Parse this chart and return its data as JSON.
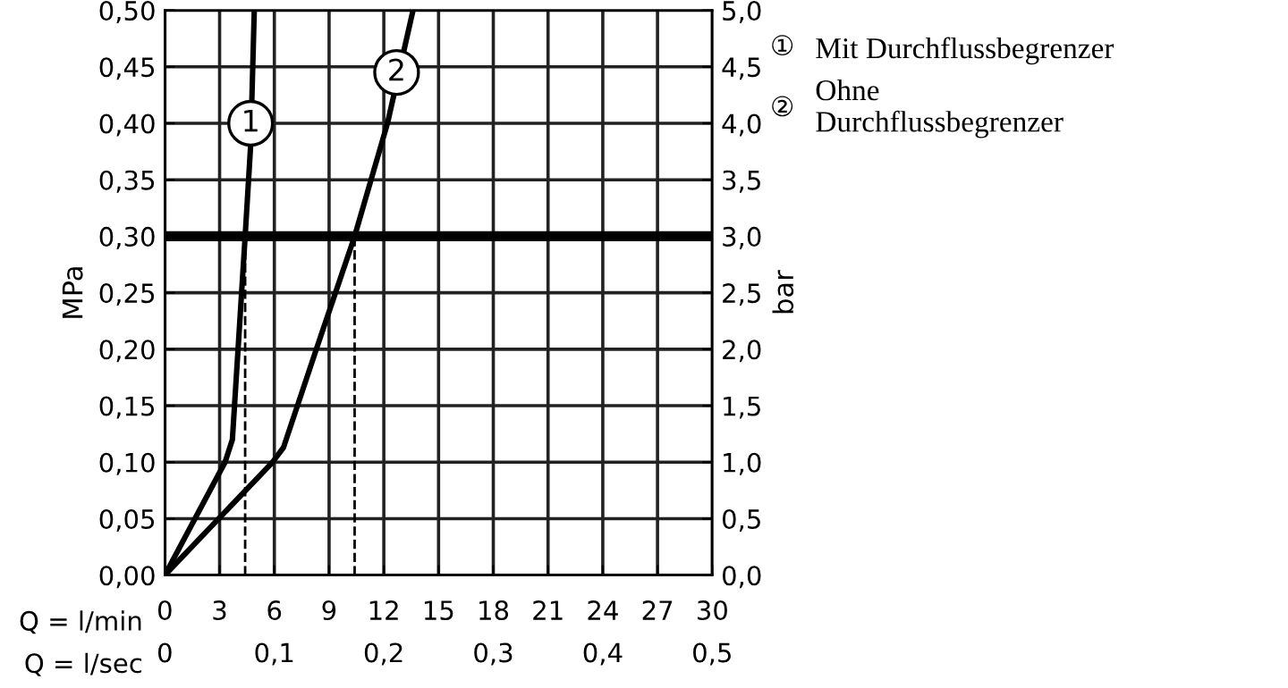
{
  "chart_data": {
    "type": "line",
    "xlabel": "Q = l/min",
    "x2label": "Q = l/sec",
    "ylabel": "MPa",
    "y2label": "bar",
    "xlim": [
      0,
      30
    ],
    "xticks": [
      0,
      3,
      6,
      9,
      12,
      15,
      18,
      21,
      24,
      27,
      30
    ],
    "x2lim": [
      0,
      0.5
    ],
    "x2ticks": [
      0,
      {
        "value": 0.1,
        "label": "0,1"
      },
      {
        "value": 0.2,
        "label": "0,2"
      },
      {
        "value": 0.3,
        "label": "0,3"
      },
      {
        "value": 0.4,
        "label": "0,4"
      },
      {
        "value": 0.5,
        "label": "0,5"
      }
    ],
    "ylim": [
      0,
      0.5
    ],
    "yticks": [
      {
        "value": 0,
        "label": "0,00"
      },
      {
        "value": 0.05,
        "label": "0,05"
      },
      {
        "value": 0.1,
        "label": "0,10"
      },
      {
        "value": 0.15,
        "label": "0,15"
      },
      {
        "value": 0.2,
        "label": "0,20"
      },
      {
        "value": 0.25,
        "label": "0,25"
      },
      {
        "value": 0.3,
        "label": "0,30"
      },
      {
        "value": 0.35,
        "label": "0,35"
      },
      {
        "value": 0.4,
        "label": "0,40"
      },
      {
        "value": 0.45,
        "label": "0,45"
      },
      {
        "value": 0.5,
        "label": "0,50"
      }
    ],
    "y2lim": [
      0,
      5
    ],
    "y2ticks": [
      {
        "value": 0,
        "label": "0,0"
      },
      {
        "value": 0.5,
        "label": "0,5"
      },
      {
        "value": 1,
        "label": "1,0"
      },
      {
        "value": 1.5,
        "label": "1,5"
      },
      {
        "value": 2,
        "label": "2,0"
      },
      {
        "value": 2.5,
        "label": "2,5"
      },
      {
        "value": 3,
        "label": "3,0"
      },
      {
        "value": 3.5,
        "label": "3,5"
      },
      {
        "value": 4,
        "label": "4,0"
      },
      {
        "value": 4.5,
        "label": "4,5"
      },
      {
        "value": 5,
        "label": "5,0"
      }
    ],
    "grid": true,
    "legend": "right",
    "marker": "none",
    "line_style": "solid",
    "series": [
      {
        "name": "Mit Durchflussbegrenzer",
        "color": "#000000",
        "x": [
          0,
          3.3,
          3.7,
          4.4,
          4.7,
          4.9
        ],
        "values": [
          0,
          0.1,
          0.12,
          0.3,
          0.38,
          0.5
        ]
      },
      {
        "name": "Ohne\nDurchflussbegrenzer",
        "color": "#000000",
        "x": [
          0,
          5.9,
          6.5,
          8.3,
          10.4,
          12.2,
          13.6
        ],
        "values": [
          0,
          0.1,
          0.113,
          0.2,
          0.3,
          0.4,
          0.5
        ]
      }
    ],
    "ref_lines": [
      {
        "axis": "y",
        "value": 0.3,
        "color": "#000000"
      },
      {
        "axis": "x",
        "value": 4.4,
        "color": "#000000",
        "line_style": "dashed"
      },
      {
        "axis": "x",
        "value": 10.4,
        "color": "#000000",
        "line_style": "dashed"
      }
    ],
    "annotations": [
      {
        "text": "1",
        "x": 4.7,
        "y": 0.4
      },
      {
        "text": "2",
        "x": 12.7,
        "y": 0.445
      },
      "①",
      "②"
    ]
  }
}
